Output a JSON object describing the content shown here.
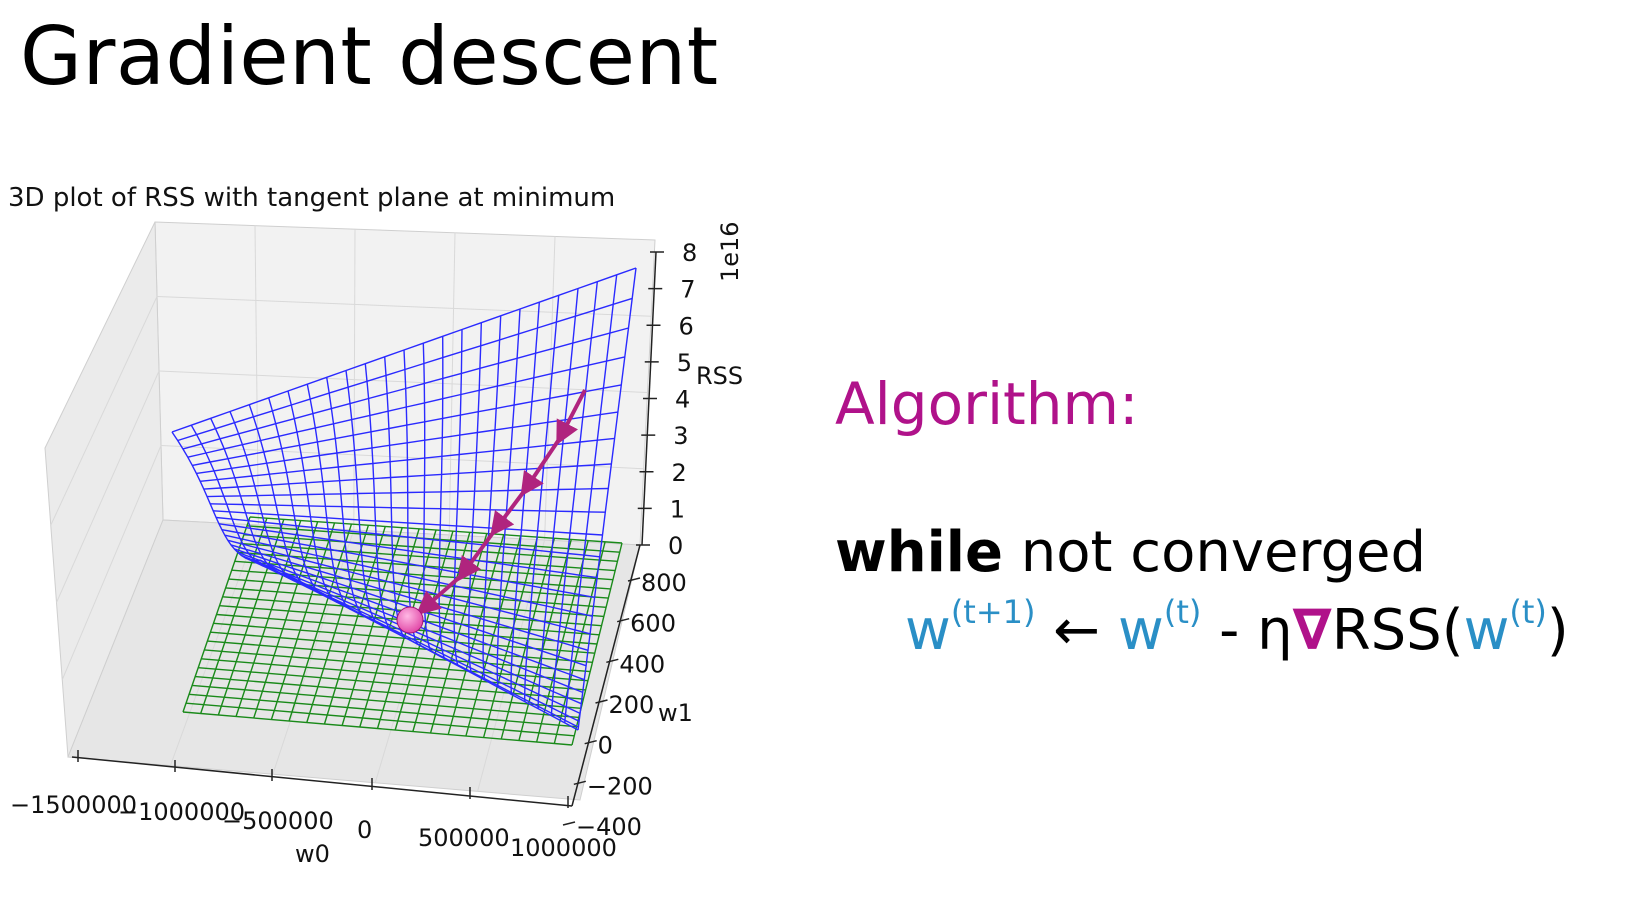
{
  "slide": {
    "title": "Gradient descent"
  },
  "colors": {
    "accent": "#b0128a",
    "w_color": "#2a8fc6",
    "surface": "#2a2aff",
    "plane": "#1a8a1a",
    "arrow": "#b0247e",
    "ball": "#e24aa8"
  },
  "chart_data": {
    "type": "surface3d",
    "title": "3D plot of RSS with tangent plane at minimum",
    "xlabel": "w0",
    "ylabel": "w1",
    "zlabel": "RSS",
    "z_multiplier_label": "1e16",
    "x_ticks": [
      "−1500000",
      "−1000000",
      "−500000",
      "0",
      "500000",
      "1000000"
    ],
    "y_ticks": [
      "800",
      "600",
      "400",
      "200",
      "0",
      "−200",
      "−400"
    ],
    "z_ticks": [
      "8",
      "7",
      "6",
      "5",
      "4",
      "3",
      "2",
      "1",
      "0"
    ],
    "xlim": [
      -1500000,
      1000000
    ],
    "ylim": [
      -400,
      800
    ],
    "zlim": [
      0,
      8
    ],
    "grid": true,
    "series": [
      {
        "kind": "wireframe_surface",
        "color": "#2a2aff"
      },
      {
        "kind": "tangent_plane",
        "color": "#1a8a1a"
      },
      {
        "kind": "gradient_path",
        "color": "#b0247e",
        "steps": 5
      },
      {
        "kind": "minimum_marker",
        "color": "#e24aa8"
      }
    ]
  },
  "algorithm": {
    "heading": "Algorithm:",
    "while_keyword": "while",
    "while_rest": " not converged",
    "w": "w",
    "sup_next": "(t+1)",
    "arrow": " ← ",
    "sup_t": "(t)",
    "minus_eta": " - η",
    "nabla": "∇",
    "rss_open": "RSS(",
    "close_paren": ")"
  }
}
